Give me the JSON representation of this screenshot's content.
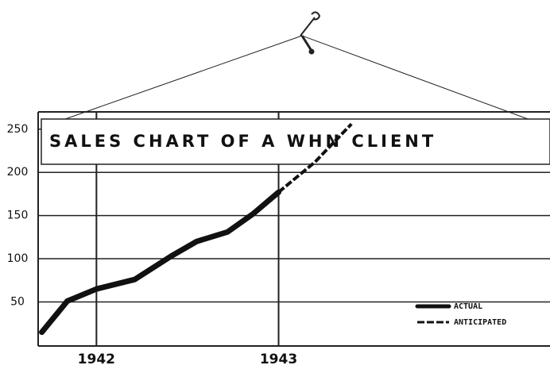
{
  "chart_data": {
    "type": "line",
    "title": "SALES CHART OF A WHN CLIENT",
    "xlim": [
      1941.68,
      1944.49
    ],
    "xticks": [
      1942,
      1943
    ],
    "ylim": [
      -1,
      270
    ],
    "yticks": [
      50,
      100,
      150,
      200,
      250
    ],
    "grid": true,
    "series": [
      {
        "name": "ACTUAL",
        "color": "#111111",
        "line_style": "solid",
        "x": [
          1941.7,
          1941.84,
          1942.0,
          1942.21,
          1942.41,
          1942.55,
          1942.72,
          1942.86,
          1943.0
        ],
        "values": [
          15,
          51,
          65,
          76,
          103,
          120,
          131,
          152,
          177
        ]
      },
      {
        "name": "ANTICIPATED",
        "color": "#111111",
        "line_style": "chain",
        "x": [
          1943.0,
          1943.2,
          1943.4
        ],
        "values": [
          177,
          212,
          256
        ]
      }
    ],
    "legend": "lower right"
  }
}
